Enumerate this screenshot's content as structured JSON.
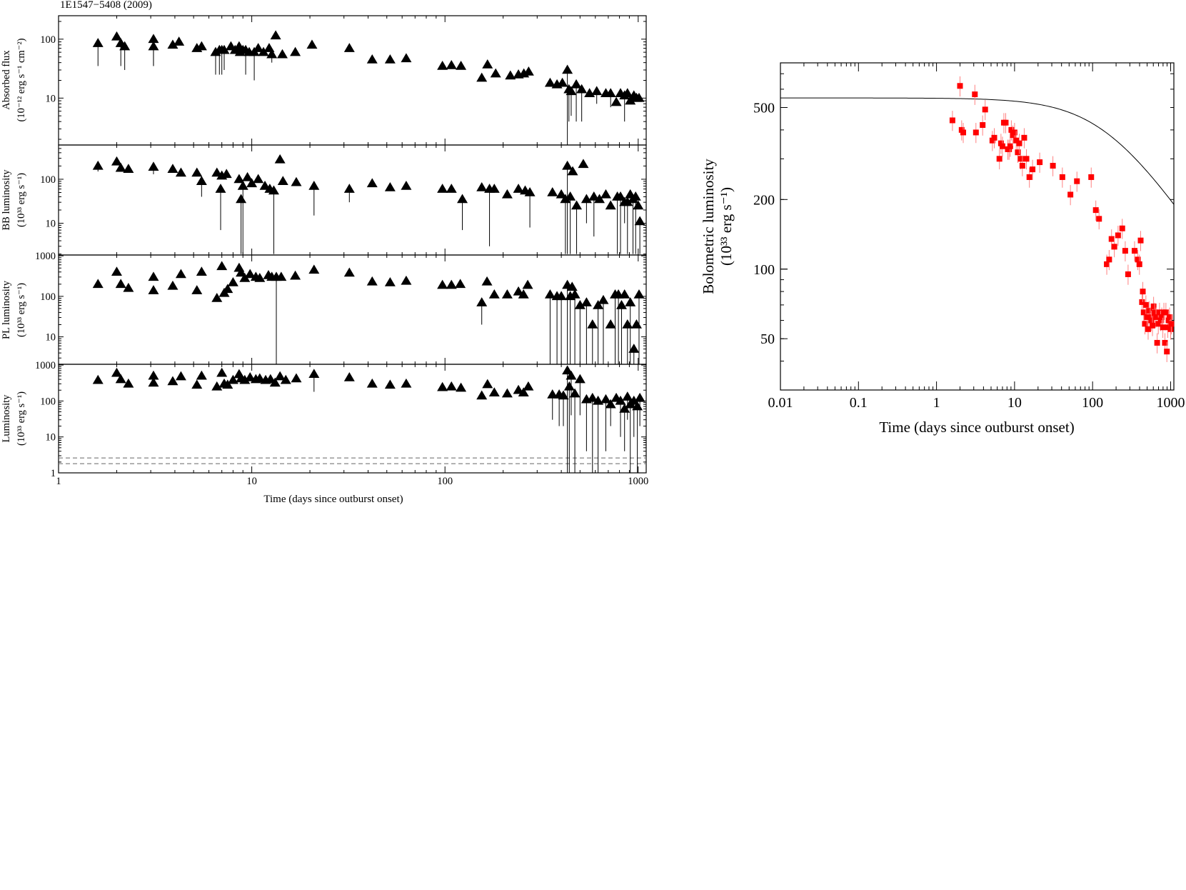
{
  "figure_title": "1E1547−5408 (2009)",
  "colors": {
    "left_markers": "#000000",
    "right_markers": "#ff0000",
    "right_errorbars": "#ff8080",
    "model_curve": "#000000",
    "threshold_lines": "#666666"
  },
  "chart_data": [
    {
      "type": "scatter",
      "marker": "triangle",
      "ylabel_line1": "Absorbed flux",
      "ylabel_line2": "(10⁻¹² erg s⁻¹ cm⁻²)",
      "xscale": "log",
      "yscale": "log",
      "xlim": [
        1,
        1100
      ],
      "ylim": [
        1.6,
        250
      ],
      "yticks": [
        {
          "v": 10,
          "label": "10"
        },
        {
          "v": 100,
          "label": "100"
        }
      ],
      "x_tick_labels": [],
      "series": [
        {
          "x": [
            1.6,
            2.0,
            2.1,
            2.2,
            3.1,
            3.1,
            3.9,
            4.2,
            5.2,
            5.5,
            6.5,
            6.8,
            7.0,
            7.2,
            7.8,
            8.2,
            8.6,
            8.7,
            9.0,
            9.3,
            9.7,
            10.3,
            10.8,
            11.5,
            12.3,
            12.7,
            13.3,
            14.4,
            16.8,
            20.5,
            32,
            42,
            52,
            63,
            97,
            108,
            121,
            155,
            166,
            183,
            218,
            240,
            256,
            271,
            350,
            380,
            405,
            430,
            438,
            450,
            478,
            510,
            560,
            610,
            680,
            720,
            770,
            810,
            850,
            880,
            910,
            950,
            980,
            1010
          ],
          "y": [
            85,
            110,
            85,
            75,
            100,
            75,
            80,
            90,
            70,
            75,
            60,
            65,
            65,
            65,
            75,
            65,
            75,
            60,
            65,
            65,
            60,
            60,
            70,
            60,
            70,
            55,
            115,
            55,
            60,
            80,
            70,
            45,
            45,
            47,
            35,
            36,
            35,
            22,
            37,
            26,
            24,
            25,
            26,
            28,
            18,
            17,
            18,
            30,
            14,
            13,
            17,
            14,
            12,
            13,
            12,
            12,
            8.5,
            12,
            11,
            12,
            9,
            11,
            10,
            10
          ],
          "ylow": [
            35,
            null,
            35,
            30,
            35,
            35,
            null,
            null,
            null,
            null,
            25,
            25,
            25,
            30,
            null,
            null,
            null,
            null,
            null,
            25,
            null,
            20,
            null,
            null,
            null,
            40,
            null,
            null,
            null,
            null,
            null,
            null,
            null,
            null,
            null,
            null,
            null,
            null,
            null,
            null,
            null,
            null,
            null,
            null,
            null,
            null,
            null,
            0.5,
            4,
            5,
            4,
            4,
            null,
            8,
            null,
            7,
            null,
            null,
            4,
            null,
            null,
            null,
            null,
            null
          ]
        }
      ]
    },
    {
      "type": "scatter",
      "marker": "triangle",
      "ylabel_line1": "BB luminosity",
      "ylabel_line2": "(10³³ erg s⁻¹)",
      "xscale": "log",
      "yscale": "log",
      "xlim": [
        1,
        1100
      ],
      "ylim": [
        1.9,
        600
      ],
      "yticks": [
        {
          "v": 10,
          "label": "10"
        },
        {
          "v": 100,
          "label": "100"
        }
      ],
      "x_tick_labels": [],
      "series": [
        {
          "x": [
            1.6,
            2.0,
            2.1,
            2.3,
            3.1,
            3.9,
            4.3,
            5.2,
            5.5,
            6.6,
            6.9,
            7.0,
            7.4,
            8.6,
            8.8,
            9.0,
            9.5,
            10.0,
            10.8,
            11.7,
            12.4,
            13.0,
            14.0,
            14.5,
            17.0,
            21,
            32,
            42,
            52,
            63,
            97,
            108,
            123,
            155,
            170,
            180,
            210,
            240,
            260,
            275,
            360,
            400,
            420,
            430,
            445,
            458,
            480,
            520,
            540,
            590,
            630,
            680,
            720,
            780,
            810,
            850,
            880,
            910,
            940,
            970,
            1000,
            1020
          ],
          "y": [
            200,
            250,
            180,
            170,
            190,
            170,
            140,
            140,
            90,
            140,
            60,
            120,
            130,
            100,
            35,
            70,
            110,
            80,
            100,
            70,
            60,
            55,
            280,
            90,
            85,
            70,
            60,
            80,
            65,
            70,
            60,
            60,
            35,
            65,
            60,
            60,
            45,
            60,
            55,
            50,
            50,
            45,
            35,
            200,
            40,
            150,
            25,
            220,
            35,
            40,
            35,
            45,
            25,
            40,
            40,
            30,
            30,
            45,
            35,
            40,
            25,
            11
          ],
          "ylow": [
            150,
            null,
            null,
            null,
            130,
            null,
            null,
            null,
            40,
            null,
            7,
            null,
            null,
            null,
            2,
            2,
            null,
            null,
            null,
            null,
            null,
            2,
            null,
            null,
            null,
            15,
            30,
            null,
            null,
            null,
            null,
            null,
            7,
            null,
            3,
            null,
            null,
            null,
            null,
            8,
            null,
            null,
            2,
            2,
            2,
            null,
            2,
            null,
            10,
            5,
            null,
            null,
            null,
            2,
            2,
            10,
            2,
            null,
            2,
            2,
            null,
            2
          ]
        }
      ]
    },
    {
      "type": "scatter",
      "marker": "triangle",
      "ylabel_line1": "PL luminosity",
      "ylabel_line2": "(10³³ erg s⁻¹)",
      "xscale": "log",
      "yscale": "log",
      "xlim": [
        1,
        1100
      ],
      "ylim": [
        2.1,
        1050
      ],
      "yticks": [
        {
          "v": 10,
          "label": "10"
        },
        {
          "v": 100,
          "label": "100"
        },
        {
          "v": 1000,
          "label": "1000"
        }
      ],
      "x_tick_labels": [],
      "series": [
        {
          "x": [
            1.6,
            2.0,
            2.1,
            2.3,
            3.1,
            3.1,
            3.9,
            4.3,
            5.2,
            5.5,
            6.6,
            7.0,
            7.2,
            7.5,
            8.0,
            8.6,
            8.8,
            9.2,
            9.8,
            10.5,
            11.0,
            12.2,
            12.7,
            13.4,
            14.2,
            16.8,
            21,
            32,
            42,
            52,
            63,
            97,
            108,
            120,
            155,
            165,
            180,
            210,
            240,
            255,
            268,
            350,
            380,
            400,
            430,
            445,
            455,
            470,
            500,
            540,
            580,
            620,
            660,
            720,
            760,
            790,
            820,
            850,
            880,
            910,
            950,
            980,
            1010
          ],
          "y": [
            200,
            400,
            200,
            160,
            300,
            140,
            180,
            350,
            140,
            400,
            90,
            550,
            120,
            150,
            220,
            500,
            380,
            280,
            350,
            300,
            280,
            330,
            300,
            300,
            300,
            320,
            450,
            380,
            230,
            220,
            240,
            190,
            190,
            200,
            70,
            230,
            110,
            110,
            130,
            110,
            190,
            110,
            100,
            100,
            190,
            100,
            170,
            110,
            60,
            70,
            20,
            60,
            80,
            20,
            110,
            110,
            60,
            110,
            20,
            70,
            5,
            20,
            110
          ],
          "ylow": [
            null,
            null,
            null,
            null,
            null,
            null,
            null,
            null,
            null,
            null,
            null,
            null,
            null,
            null,
            null,
            null,
            null,
            null,
            null,
            null,
            null,
            null,
            null,
            2,
            null,
            null,
            null,
            null,
            null,
            null,
            null,
            null,
            null,
            null,
            20,
            null,
            null,
            null,
            null,
            null,
            null,
            2,
            2,
            2,
            2,
            2,
            null,
            2,
            2,
            2,
            2,
            2,
            2,
            null,
            2,
            2,
            2,
            null,
            2,
            2,
            2,
            null,
            2
          ]
        }
      ]
    },
    {
      "type": "scatter",
      "marker": "triangle",
      "ylabel_line1": "Luminosity",
      "ylabel_line2": "(10³³ erg s⁻¹)",
      "xscale": "log",
      "yscale": "log",
      "xlim": [
        1,
        1100
      ],
      "ylim": [
        1,
        1050
      ],
      "yticks": [
        {
          "v": 1,
          "label": "1"
        },
        {
          "v": 10,
          "label": "10"
        },
        {
          "v": 100,
          "label": "100"
        },
        {
          "v": 1000,
          "label": "1000"
        }
      ],
      "x_tick_labels": [
        {
          "v": 1,
          "label": "1"
        },
        {
          "v": 10,
          "label": "10"
        },
        {
          "v": 100,
          "label": "100"
        },
        {
          "v": 1000,
          "label": "1000"
        }
      ],
      "xlabel": "Time (days since outburst onset)",
      "hlines": [
        2.6,
        1.8
      ],
      "series": [
        {
          "x": [
            1.6,
            2.0,
            2.1,
            2.3,
            3.1,
            3.1,
            3.9,
            4.3,
            5.2,
            5.5,
            6.6,
            7.0,
            7.2,
            7.5,
            8.0,
            8.6,
            8.8,
            9.2,
            9.8,
            10.5,
            11.0,
            11.8,
            12.5,
            13.2,
            14.0,
            15.0,
            17.0,
            21,
            32,
            42,
            52,
            63,
            97,
            108,
            121,
            155,
            166,
            180,
            210,
            240,
            255,
            270,
            360,
            390,
            410,
            430,
            440,
            450,
            470,
            500,
            540,
            580,
            620,
            680,
            720,
            770,
            810,
            850,
            880,
            910,
            950,
            990,
            1020
          ],
          "y": [
            380,
            600,
            400,
            300,
            500,
            320,
            350,
            480,
            280,
            500,
            250,
            600,
            300,
            280,
            380,
            550,
            420,
            380,
            450,
            400,
            420,
            380,
            400,
            320,
            480,
            380,
            420,
            560,
            450,
            300,
            280,
            300,
            240,
            250,
            230,
            140,
            290,
            170,
            160,
            200,
            170,
            250,
            150,
            150,
            140,
            700,
            250,
            500,
            160,
            400,
            110,
            120,
            100,
            110,
            80,
            120,
            100,
            60,
            130,
            80,
            100,
            70,
            120
          ],
          "ylow": [
            null,
            null,
            null,
            null,
            null,
            null,
            null,
            null,
            null,
            null,
            null,
            null,
            null,
            null,
            null,
            null,
            null,
            null,
            null,
            null,
            null,
            null,
            null,
            null,
            null,
            null,
            null,
            180,
            null,
            null,
            null,
            null,
            null,
            null,
            null,
            null,
            null,
            null,
            null,
            null,
            null,
            null,
            30,
            20,
            20,
            1,
            1,
            40,
            1,
            40,
            4,
            1,
            1,
            4,
            20,
            null,
            10,
            4,
            30,
            1,
            10,
            1,
            20
          ]
        }
      ]
    },
    {
      "type": "scatter",
      "marker": "square",
      "ylabel_line1": "Bolometric luminosity",
      "ylabel_line2": "(10³³ erg s⁻¹)",
      "xlabel": "Time (days since outburst onset)",
      "xscale": "log",
      "yscale": "log",
      "xlim": [
        0.01,
        1100
      ],
      "ylim": [
        30,
        780
      ],
      "yticks": [
        {
          "v": 50,
          "label": "50"
        },
        {
          "v": 100,
          "label": "100"
        },
        {
          "v": 200,
          "label": "200"
        },
        {
          "v": 500,
          "label": "500"
        }
      ],
      "x_tick_labels": [
        {
          "v": 0.01,
          "label": "0.01"
        },
        {
          "v": 0.1,
          "label": "0.1"
        },
        {
          "v": 1,
          "label": "1"
        },
        {
          "v": 10,
          "label": "10"
        },
        {
          "v": 100,
          "label": "100"
        },
        {
          "v": 1000,
          "label": "1000"
        }
      ],
      "model_curve": {
        "L0": 550,
        "t_break": 150,
        "index": 0.5
      },
      "series": [
        {
          "x": [
            1.6,
            2.0,
            2.1,
            2.2,
            3.1,
            3.2,
            3.9,
            4.2,
            5.2,
            5.5,
            6.4,
            6.7,
            7.0,
            7.3,
            7.7,
            8.2,
            8.5,
            8.8,
            9.1,
            9.5,
            10.0,
            10.5,
            11.0,
            11.5,
            12.0,
            12.6,
            13.3,
            14.2,
            15.5,
            17.0,
            21,
            31,
            41,
            52,
            63,
            96,
            110,
            121,
            152,
            163,
            175,
            190,
            212,
            240,
            262,
            285,
            345,
            380,
            398,
            413,
            430,
            440,
            452,
            468,
            482,
            497,
            515,
            530,
            548,
            565,
            585,
            605,
            625,
            650,
            672,
            695,
            720,
            745,
            770,
            795,
            820,
            845,
            870,
            895,
            920,
            945,
            970,
            1000,
            1020
          ],
          "y": [
            440,
            620,
            400,
            390,
            570,
            390,
            420,
            490,
            360,
            370,
            300,
            350,
            340,
            430,
            430,
            330,
            330,
            340,
            400,
            380,
            390,
            360,
            320,
            350,
            300,
            280,
            370,
            300,
            250,
            270,
            290,
            280,
            250,
            210,
            240,
            250,
            180,
            165,
            105,
            110,
            135,
            125,
            140,
            150,
            120,
            95,
            120,
            110,
            105,
            133,
            72,
            80,
            65,
            58,
            70,
            62,
            55,
            66,
            62,
            60,
            57,
            69,
            65,
            62,
            48,
            58,
            65,
            60,
            62,
            56,
            65,
            48,
            65,
            44,
            56,
            60,
            62,
            55,
            58
          ],
          "yerr_frac": 0.1
        }
      ]
    }
  ]
}
